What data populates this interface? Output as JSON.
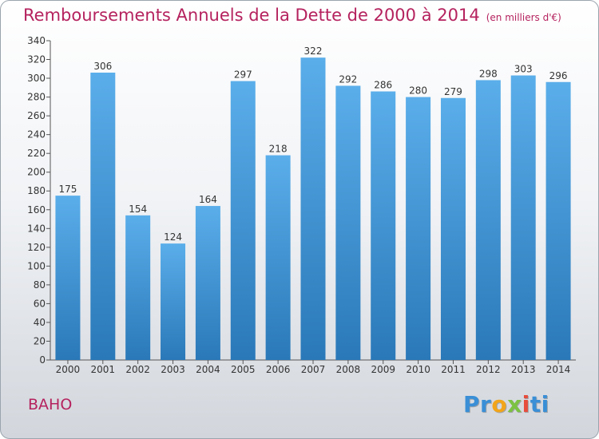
{
  "chart_data": {
    "type": "bar",
    "title": "Remboursements Annuels de la Dette de 2000 à 2014",
    "subtitle": "(en milliers d'€)",
    "categories": [
      "2000",
      "2001",
      "2002",
      "2003",
      "2004",
      "2005",
      "2006",
      "2007",
      "2008",
      "2009",
      "2010",
      "2011",
      "2012",
      "2013",
      "2014"
    ],
    "values": [
      175,
      306,
      154,
      124,
      164,
      297,
      218,
      322,
      292,
      286,
      280,
      279,
      298,
      303,
      296
    ],
    "ylim": [
      0,
      340
    ],
    "yticks": [
      0,
      20,
      40,
      60,
      80,
      100,
      120,
      140,
      160,
      180,
      200,
      220,
      240,
      260,
      280,
      300,
      320,
      340
    ],
    "grid": false,
    "bar_color": "#4a9fe0"
  },
  "place": "BAHO",
  "logo": "Proxiti"
}
